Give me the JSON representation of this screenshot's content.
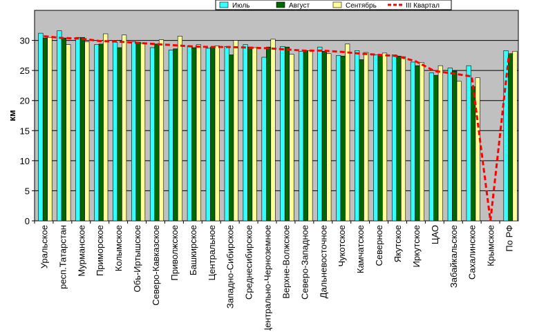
{
  "chart_data": {
    "type": "bar",
    "ylabel": "км",
    "ylim": [
      0,
      35
    ],
    "yticks": [
      0,
      5,
      10,
      15,
      20,
      25,
      30
    ],
    "grid": true,
    "legend_position": "top-right",
    "categories": [
      "Уральское",
      "респ.Татарстан",
      "Мурманское",
      "Приморское",
      "Колымское",
      "Обь-Иртышское",
      "Северо-Кавказское",
      "Приволжское",
      "Башкирское",
      "Центральное",
      "Западно-Сибирское",
      "Среднесибирское",
      "Центрально-Черноземное",
      "Верхне-Волжское",
      "Северо-Западное",
      "Дальневосточное",
      "Чукотское",
      "Камчатское",
      "Северное",
      "Якутское",
      "Иркутское",
      "ЦАО",
      "Забайкальское",
      "Сахалинское",
      "Крымское",
      "По РФ"
    ],
    "series": [
      {
        "name": "Июль",
        "type": "bar",
        "color": "#33ffff",
        "values": [
          31.2,
          31.6,
          30.5,
          29.3,
          29.7,
          29.8,
          28.8,
          28.4,
          29.1,
          28.7,
          29.0,
          29.3,
          27.2,
          29.0,
          28.2,
          28.9,
          27.5,
          28.3,
          27.6,
          27.6,
          26.4,
          24.6,
          25.4,
          25.8,
          0,
          28.3
        ]
      },
      {
        "name": "Август",
        "type": "bar",
        "color": "#006600",
        "values": [
          30.4,
          30.4,
          30.5,
          29.4,
          28.8,
          29.7,
          29.4,
          28.6,
          28.8,
          28.9,
          27.6,
          28.9,
          28.9,
          28.9,
          28.3,
          28.2,
          27.4,
          26.8,
          27.6,
          27.4,
          25.8,
          24.2,
          24.9,
          22.3,
          0,
          27.8
        ]
      },
      {
        "name": "Сентябрь",
        "type": "bar",
        "color": "#ffff99",
        "values": [
          30.5,
          29.3,
          29.8,
          31.1,
          30.9,
          29.5,
          30.1,
          30.7,
          29.3,
          29.1,
          30.0,
          28.8,
          30.2,
          27.7,
          28.3,
          27.8,
          29.4,
          28.0,
          27.9,
          27.3,
          26.3,
          25.8,
          23.2,
          23.8,
          0,
          28.2
        ]
      },
      {
        "name": "III Квартал",
        "type": "line",
        "color": "#ff0000",
        "values": [
          30.7,
          30.4,
          30.3,
          29.9,
          29.8,
          29.6,
          29.4,
          29.2,
          29.0,
          28.9,
          28.9,
          28.8,
          28.7,
          28.5,
          28.3,
          28.3,
          28.1,
          27.8,
          27.6,
          27.4,
          26.5,
          24.9,
          24.5,
          24.0,
          0,
          27.8
        ]
      }
    ]
  }
}
